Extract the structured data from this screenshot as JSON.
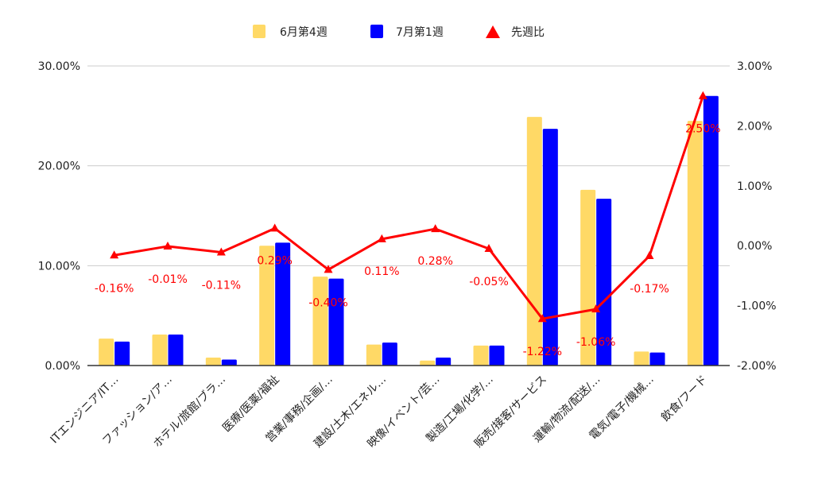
{
  "chart_data": {
    "type": "bar",
    "categories": [
      "ITエンジニア/IT…",
      "ファッション/ア…",
      "ホテル/旅館/ブラ…",
      "医療/医薬/福祉",
      "営業/事務/企画/…",
      "建設/土木/エネル…",
      "映像/イベント/芸…",
      "製造/工場/化学/…",
      "販売/接客/サービス",
      "運輸/物流/配送/…",
      "電気/電子/機械…",
      "飲食/フード"
    ],
    "series": [
      {
        "name": "6月第4週",
        "type": "bar",
        "axis": "left",
        "color": "#ffd966",
        "values": [
          2.7,
          3.1,
          0.8,
          12.0,
          8.9,
          2.1,
          0.5,
          2.0,
          24.9,
          17.6,
          1.4,
          24.5
        ]
      },
      {
        "name": "7月第1週",
        "type": "bar",
        "axis": "left",
        "color": "#0000ff",
        "values": [
          2.4,
          3.1,
          0.6,
          12.3,
          8.7,
          2.3,
          0.8,
          2.0,
          23.7,
          16.7,
          1.3,
          27.0
        ]
      },
      {
        "name": "先週比",
        "type": "line",
        "axis": "right",
        "color": "#ff0000",
        "values": [
          -0.16,
          -0.01,
          -0.11,
          0.29,
          -0.4,
          0.11,
          0.28,
          -0.05,
          -1.22,
          -1.06,
          -0.17,
          2.5
        ],
        "labels": [
          "-0.16%",
          "-0.01%",
          "-0.11%",
          "0.29%",
          "-0.40%",
          "0.11%",
          "0.28%",
          "-0.05%",
          "-1.22%",
          "-1.06%",
          "-0.17%",
          "2.50%"
        ]
      }
    ],
    "left_axis": {
      "min": 0,
      "max": 30,
      "ticks": [
        "0.00%",
        "10.00%",
        "20.00%",
        "30.00%"
      ]
    },
    "right_axis": {
      "min": -2,
      "max": 3,
      "ticks": [
        "-2.00%",
        "-1.00%",
        "0.00%",
        "1.00%",
        "2.00%",
        "3.00%"
      ]
    },
    "legend_position": "top",
    "grid": true
  }
}
